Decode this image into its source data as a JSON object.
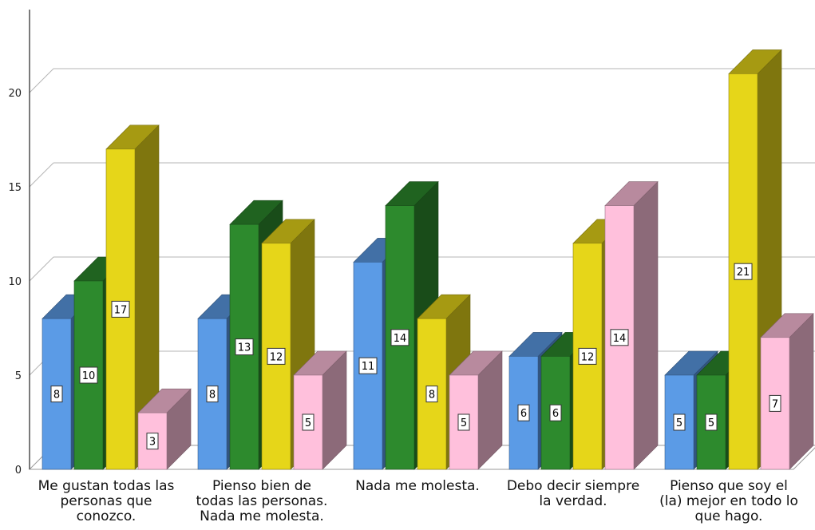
{
  "chart_data": {
    "type": "bar",
    "title": "",
    "xlabel": "",
    "ylabel": "",
    "ylim": [
      0,
      22
    ],
    "yticks": [
      0,
      5,
      10,
      15,
      20
    ],
    "grid": true,
    "style": "3d-clustered",
    "categories": [
      [
        "Me gustan todas las",
        "personas que",
        "conozco."
      ],
      [
        "Pienso bien de",
        "todas las personas.",
        "Nada me molesta."
      ],
      [
        "Nada me molesta."
      ],
      [
        "Debo decir siempre",
        "la verdad."
      ],
      [
        "Pienso que soy el",
        "(la) mejor en todo lo",
        "que hago."
      ]
    ],
    "series": [
      {
        "color": "#5b9be6",
        "values": [
          8,
          8,
          11,
          6,
          5
        ]
      },
      {
        "color": "#2d8a2d",
        "values": [
          10,
          13,
          14,
          6,
          5
        ]
      },
      {
        "color": "#e6d619",
        "values": [
          17,
          12,
          8,
          12,
          21
        ]
      },
      {
        "color": "#ffc0dc",
        "values": [
          3,
          5,
          5,
          14,
          7
        ]
      }
    ]
  }
}
